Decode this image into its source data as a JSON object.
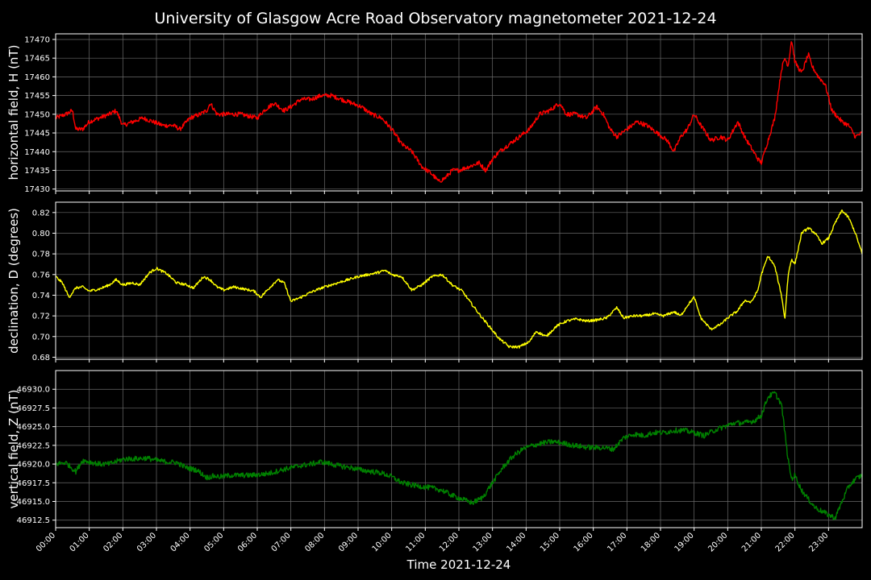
{
  "chart_data": {
    "type": "line",
    "title": "University of Glasgow Acre Road Observatory magnetometer 2021-12-24",
    "xlabel": "Time 2021-12-24",
    "x_ticks": [
      "00:00",
      "01:00",
      "02:00",
      "03:00",
      "04:00",
      "05:00",
      "06:00",
      "07:00",
      "08:00",
      "09:00",
      "10:00",
      "11:00",
      "12:00",
      "13:00",
      "14:00",
      "15:00",
      "16:00",
      "17:00",
      "18:00",
      "19:00",
      "20:00",
      "21:00",
      "22:00",
      "23:00"
    ],
    "xlim_hours": [
      0,
      24
    ],
    "grid": true,
    "panels": [
      {
        "name": "H",
        "ylabel": "horizontal field, H (nT)",
        "color": "#ff0000",
        "ylim": [
          17429.5,
          17471.5
        ],
        "y_ticks": [
          17430,
          17435,
          17440,
          17445,
          17450,
          17455,
          17460,
          17465,
          17470
        ],
        "tick_decimals": 0,
        "noise": 0.6,
        "x_hours": [
          0,
          0.3,
          0.5,
          0.6,
          0.8,
          1.0,
          1.3,
          1.6,
          1.8,
          2.0,
          2.3,
          2.6,
          2.9,
          3.2,
          3.5,
          3.7,
          4.0,
          4.3,
          4.5,
          4.6,
          4.8,
          5.0,
          5.5,
          6.0,
          6.2,
          6.5,
          6.8,
          7.0,
          7.3,
          7.6,
          7.9,
          8.2,
          8.5,
          8.8,
          9.1,
          9.4,
          9.7,
          10.0,
          10.3,
          10.6,
          10.9,
          11.2,
          11.4,
          11.6,
          11.8,
          12.0,
          12.3,
          12.6,
          12.8,
          13.0,
          13.2,
          13.5,
          13.8,
          14.1,
          14.4,
          14.7,
          15.0,
          15.2,
          15.5,
          15.8,
          16.1,
          16.3,
          16.5,
          16.7,
          17.0,
          17.3,
          17.6,
          17.9,
          18.2,
          18.4,
          18.6,
          18.8,
          19.0,
          19.2,
          19.5,
          19.8,
          20.0,
          20.3,
          20.5,
          20.7,
          20.9,
          21.0,
          21.2,
          21.4,
          21.6,
          21.7,
          21.8,
          21.9,
          22.0,
          22.2,
          22.4,
          22.5,
          22.7,
          22.9,
          23.1,
          23.4,
          23.6,
          23.8,
          24.0
        ],
        "values": [
          17449,
          17450,
          17451,
          17446,
          17446,
          17448,
          17449,
          17450,
          17451,
          17447,
          17448,
          17449,
          17448,
          17447,
          17447,
          17446,
          17449,
          17450,
          17451,
          17453,
          17450,
          17450,
          17450,
          17449,
          17451,
          17453,
          17451,
          17452,
          17454,
          17454,
          17455,
          17455,
          17454,
          17453,
          17452,
          17450,
          17449,
          17446,
          17442,
          17440,
          17436,
          17434,
          17432,
          17433,
          17435,
          17435,
          17436,
          17437,
          17435,
          17438,
          17440,
          17442,
          17444,
          17446,
          17450,
          17451,
          17453,
          17450,
          17450,
          17449,
          17452,
          17450,
          17446,
          17444,
          17446,
          17448,
          17447,
          17445,
          17443,
          17440,
          17444,
          17446,
          17450,
          17447,
          17443,
          17444,
          17443,
          17448,
          17444,
          17441,
          17438,
          17437,
          17443,
          17449,
          17462,
          17465,
          17463,
          17470,
          17464,
          17461,
          17466,
          17463,
          17460,
          17458,
          17451,
          17448,
          17447,
          17444,
          17445
        ]
      },
      {
        "name": "D",
        "ylabel": "declination, D (degrees)",
        "color": "#ffff00",
        "ylim": [
          0.678,
          0.83
        ],
        "y_ticks": [
          0.68,
          0.7,
          0.72,
          0.74,
          0.76,
          0.78,
          0.8,
          0.82
        ],
        "tick_decimals": 2,
        "noise": 0.0012,
        "x_hours": [
          0,
          0.2,
          0.4,
          0.6,
          0.8,
          1.0,
          1.3,
          1.6,
          1.8,
          2.0,
          2.3,
          2.5,
          2.8,
          3.0,
          3.3,
          3.6,
          3.9,
          4.1,
          4.4,
          4.6,
          4.8,
          5.0,
          5.3,
          5.6,
          5.9,
          6.1,
          6.3,
          6.6,
          6.8,
          7.0,
          7.3,
          7.6,
          8.0,
          8.5,
          9.0,
          9.3,
          9.6,
          9.8,
          10.0,
          10.3,
          10.6,
          10.9,
          11.2,
          11.5,
          11.8,
          12.1,
          12.3,
          12.6,
          12.9,
          13.2,
          13.5,
          13.8,
          14.1,
          14.3,
          14.6,
          14.9,
          15.2,
          15.5,
          15.8,
          16.1,
          16.4,
          16.7,
          16.9,
          17.2,
          17.5,
          17.8,
          18.1,
          18.4,
          18.6,
          18.8,
          19.0,
          19.2,
          19.5,
          19.8,
          20.0,
          20.3,
          20.5,
          20.7,
          20.9,
          21.0,
          21.2,
          21.4,
          21.6,
          21.7,
          21.8,
          21.9,
          22.0,
          22.2,
          22.4,
          22.6,
          22.8,
          23.0,
          23.2,
          23.4,
          23.6,
          23.8,
          24.0
        ],
        "values": [
          0.758,
          0.752,
          0.738,
          0.747,
          0.748,
          0.744,
          0.746,
          0.75,
          0.755,
          0.75,
          0.752,
          0.75,
          0.762,
          0.766,
          0.761,
          0.752,
          0.75,
          0.747,
          0.758,
          0.755,
          0.748,
          0.745,
          0.748,
          0.746,
          0.744,
          0.738,
          0.745,
          0.755,
          0.752,
          0.734,
          0.738,
          0.743,
          0.748,
          0.753,
          0.758,
          0.76,
          0.762,
          0.764,
          0.76,
          0.758,
          0.745,
          0.75,
          0.758,
          0.76,
          0.75,
          0.744,
          0.735,
          0.722,
          0.71,
          0.698,
          0.69,
          0.69,
          0.695,
          0.705,
          0.7,
          0.71,
          0.715,
          0.717,
          0.715,
          0.716,
          0.718,
          0.728,
          0.718,
          0.72,
          0.72,
          0.722,
          0.72,
          0.724,
          0.72,
          0.73,
          0.738,
          0.718,
          0.707,
          0.712,
          0.718,
          0.725,
          0.735,
          0.733,
          0.745,
          0.76,
          0.778,
          0.768,
          0.74,
          0.717,
          0.76,
          0.775,
          0.77,
          0.8,
          0.805,
          0.8,
          0.79,
          0.795,
          0.81,
          0.822,
          0.815,
          0.8,
          0.78
        ]
      },
      {
        "name": "Z",
        "ylabel": "vertical field, Z (nT)",
        "color": "#008000",
        "ylim": [
          46911.5,
          46932.5
        ],
        "y_ticks": [
          46912.5,
          46915.0,
          46917.5,
          46920.0,
          46922.5,
          46925.0,
          46927.5,
          46930.0
        ],
        "tick_decimals": 1,
        "noise": 0.35,
        "x_hours": [
          0,
          0.3,
          0.6,
          0.8,
          1.0,
          1.3,
          1.6,
          1.9,
          2.1,
          2.4,
          2.7,
          3.0,
          3.3,
          3.6,
          3.9,
          4.2,
          4.5,
          4.7,
          4.9,
          5.2,
          5.5,
          5.8,
          6.1,
          6.4,
          6.7,
          7.0,
          7.3,
          7.6,
          7.9,
          8.2,
          8.5,
          8.8,
          9.1,
          9.4,
          9.7,
          10.0,
          10.3,
          10.6,
          10.9,
          11.2,
          11.5,
          11.8,
          12.1,
          12.4,
          12.7,
          13.0,
          13.3,
          13.6,
          13.9,
          14.2,
          14.5,
          14.8,
          15.1,
          15.4,
          15.7,
          16.0,
          16.3,
          16.6,
          16.9,
          17.2,
          17.5,
          17.8,
          18.1,
          18.4,
          18.7,
          19.0,
          19.3,
          19.6,
          19.9,
          20.2,
          20.5,
          20.8,
          21.0,
          21.2,
          21.4,
          21.6,
          21.8,
          21.9,
          22.0,
          22.2,
          22.4,
          22.6,
          22.8,
          23.0,
          23.2,
          23.4,
          23.6,
          23.8,
          24.0
        ],
        "values": [
          46920,
          46920.2,
          46919,
          46920.5,
          46920.3,
          46920,
          46920,
          46920.5,
          46920.7,
          46920.7,
          46920.8,
          46920.5,
          46920.3,
          46920.2,
          46919.5,
          46919.2,
          46918.2,
          46918.4,
          46918.3,
          46918.5,
          46918.5,
          46918.5,
          46918.6,
          46918.8,
          46919.2,
          46919.5,
          46919.8,
          46920,
          46920.3,
          46920,
          46919.7,
          46919.5,
          46919.2,
          46919,
          46918.8,
          46918.3,
          46917.5,
          46917.2,
          46917,
          46916.8,
          46916.5,
          46915.8,
          46915.3,
          46914.8,
          46915.5,
          46917.5,
          46919.5,
          46921,
          46922,
          46922.5,
          46922.8,
          46923,
          46922.8,
          46922.5,
          46922.3,
          46922.2,
          46922.2,
          46922,
          46923.5,
          46924,
          46923.8,
          46924.2,
          46924.2,
          46924.5,
          46924.5,
          46924.2,
          46923.8,
          46924.5,
          46925,
          46925.5,
          46925.5,
          46925.8,
          46926.5,
          46929,
          46929.5,
          46928,
          46920.5,
          46918,
          46918.5,
          46916.5,
          46915.3,
          46914.2,
          46913.7,
          46913.2,
          46912.8,
          46915,
          46917,
          46918,
          46918.5
        ]
      }
    ]
  }
}
